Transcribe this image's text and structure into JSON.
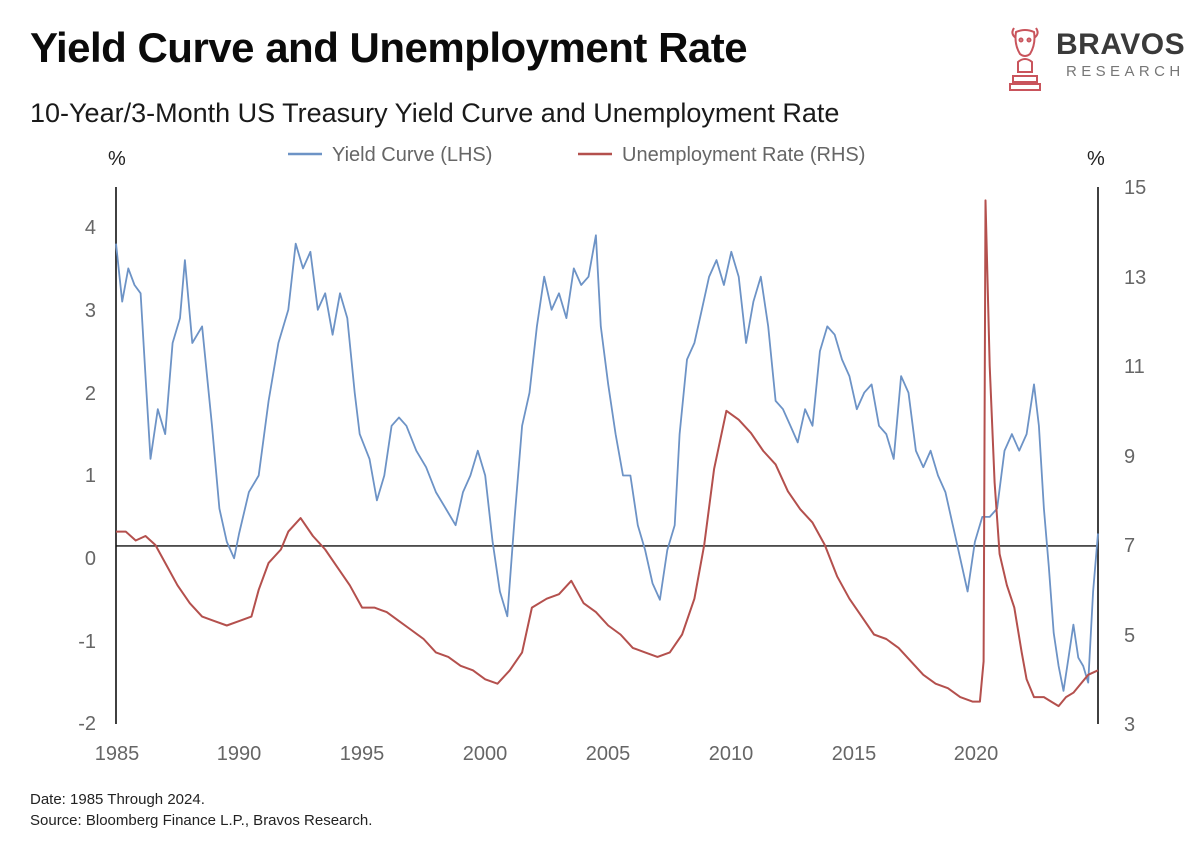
{
  "header": {
    "title": "Yield Curve and Unemployment Rate",
    "subtitle": "10-Year/3-Month US Treasury Yield Curve and Unemployment Rate"
  },
  "brand": {
    "name": "BRAVOS",
    "tagline": "RESEARCH",
    "logo_icon": "bull-chess-knight-icon",
    "logo_color": "#c9545c"
  },
  "footer": {
    "date_note": "Date: 1985 Through 2024.",
    "source_note": "Source: Bloomberg Finance L.P., Bravos Research."
  },
  "chart_data": {
    "type": "line",
    "x_label_ticks": [
      "1985",
      "1990",
      "1995",
      "2000",
      "2005",
      "2010",
      "2015",
      "2020"
    ],
    "xlim": [
      1985,
      2024.9
    ],
    "left_axis": {
      "unit": "%",
      "ticks": [
        "4",
        "3",
        "2",
        "1",
        "0",
        "-1",
        "-2"
      ],
      "ylim": [
        -2,
        4.45
      ]
    },
    "right_axis": {
      "unit": "%",
      "ticks": [
        "15",
        "13",
        "11",
        "9",
        "7",
        "5",
        "3"
      ],
      "ylim": [
        3,
        15
      ]
    },
    "zero_line": 0.15,
    "legend_position": "top-center",
    "series": [
      {
        "name": "Yield Curve (LHS)",
        "axis": "left",
        "color": "#6d93c6",
        "points": [
          [
            1985.0,
            3.8
          ],
          [
            1985.25,
            3.1
          ],
          [
            1985.5,
            3.5
          ],
          [
            1985.75,
            3.3
          ],
          [
            1986.0,
            3.2
          ],
          [
            1986.2,
            2.2
          ],
          [
            1986.4,
            1.2
          ],
          [
            1986.7,
            1.8
          ],
          [
            1987.0,
            1.5
          ],
          [
            1987.3,
            2.6
          ],
          [
            1987.6,
            2.9
          ],
          [
            1987.8,
            3.6
          ],
          [
            1988.1,
            2.6
          ],
          [
            1988.5,
            2.8
          ],
          [
            1988.9,
            1.6
          ],
          [
            1989.2,
            0.6
          ],
          [
            1989.5,
            0.2
          ],
          [
            1989.8,
            0.0
          ],
          [
            1990.0,
            0.3
          ],
          [
            1990.4,
            0.8
          ],
          [
            1990.8,
            1.0
          ],
          [
            1991.2,
            1.9
          ],
          [
            1991.6,
            2.6
          ],
          [
            1992.0,
            3.0
          ],
          [
            1992.3,
            3.8
          ],
          [
            1992.6,
            3.5
          ],
          [
            1992.9,
            3.7
          ],
          [
            1993.2,
            3.0
          ],
          [
            1993.5,
            3.2
          ],
          [
            1993.8,
            2.7
          ],
          [
            1994.1,
            3.2
          ],
          [
            1994.4,
            2.9
          ],
          [
            1994.7,
            2.0
          ],
          [
            1994.9,
            1.5
          ],
          [
            1995.3,
            1.2
          ],
          [
            1995.6,
            0.7
          ],
          [
            1995.9,
            1.0
          ],
          [
            1996.2,
            1.6
          ],
          [
            1996.5,
            1.7
          ],
          [
            1996.8,
            1.6
          ],
          [
            1997.2,
            1.3
          ],
          [
            1997.6,
            1.1
          ],
          [
            1998.0,
            0.8
          ],
          [
            1998.4,
            0.6
          ],
          [
            1998.8,
            0.4
          ],
          [
            1999.1,
            0.8
          ],
          [
            1999.4,
            1.0
          ],
          [
            1999.7,
            1.3
          ],
          [
            2000.0,
            1.0
          ],
          [
            2000.3,
            0.2
          ],
          [
            2000.6,
            -0.4
          ],
          [
            2000.9,
            -0.7
          ],
          [
            2001.2,
            0.5
          ],
          [
            2001.5,
            1.6
          ],
          [
            2001.8,
            2.0
          ],
          [
            2002.1,
            2.8
          ],
          [
            2002.4,
            3.4
          ],
          [
            2002.7,
            3.0
          ],
          [
            2003.0,
            3.2
          ],
          [
            2003.3,
            2.9
          ],
          [
            2003.6,
            3.5
          ],
          [
            2003.9,
            3.3
          ],
          [
            2004.2,
            3.4
          ],
          [
            2004.5,
            3.9
          ],
          [
            2004.7,
            2.8
          ],
          [
            2005.0,
            2.1
          ],
          [
            2005.3,
            1.5
          ],
          [
            2005.6,
            1.0
          ],
          [
            2005.9,
            1.0
          ],
          [
            2006.2,
            0.4
          ],
          [
            2006.5,
            0.1
          ],
          [
            2006.8,
            -0.3
          ],
          [
            2007.1,
            -0.5
          ],
          [
            2007.4,
            0.1
          ],
          [
            2007.7,
            0.4
          ],
          [
            2007.9,
            1.5
          ],
          [
            2008.2,
            2.4
          ],
          [
            2008.5,
            2.6
          ],
          [
            2008.8,
            3.0
          ],
          [
            2009.1,
            3.4
          ],
          [
            2009.4,
            3.6
          ],
          [
            2009.7,
            3.3
          ],
          [
            2010.0,
            3.7
          ],
          [
            2010.3,
            3.4
          ],
          [
            2010.6,
            2.6
          ],
          [
            2010.9,
            3.1
          ],
          [
            2011.2,
            3.4
          ],
          [
            2011.5,
            2.8
          ],
          [
            2011.8,
            1.9
          ],
          [
            2012.1,
            1.8
          ],
          [
            2012.4,
            1.6
          ],
          [
            2012.7,
            1.4
          ],
          [
            2013.0,
            1.8
          ],
          [
            2013.3,
            1.6
          ],
          [
            2013.6,
            2.5
          ],
          [
            2013.9,
            2.8
          ],
          [
            2014.2,
            2.7
          ],
          [
            2014.5,
            2.4
          ],
          [
            2014.8,
            2.2
          ],
          [
            2015.1,
            1.8
          ],
          [
            2015.4,
            2.0
          ],
          [
            2015.7,
            2.1
          ],
          [
            2016.0,
            1.6
          ],
          [
            2016.3,
            1.5
          ],
          [
            2016.6,
            1.2
          ],
          [
            2016.9,
            2.2
          ],
          [
            2017.2,
            2.0
          ],
          [
            2017.5,
            1.3
          ],
          [
            2017.8,
            1.1
          ],
          [
            2018.1,
            1.3
          ],
          [
            2018.4,
            1.0
          ],
          [
            2018.7,
            0.8
          ],
          [
            2019.0,
            0.4
          ],
          [
            2019.3,
            0.0
          ],
          [
            2019.6,
            -0.4
          ],
          [
            2019.9,
            0.2
          ],
          [
            2020.2,
            0.5
          ],
          [
            2020.5,
            0.5
          ],
          [
            2020.8,
            0.6
          ],
          [
            2021.1,
            1.3
          ],
          [
            2021.4,
            1.5
          ],
          [
            2021.7,
            1.3
          ],
          [
            2022.0,
            1.5
          ],
          [
            2022.3,
            2.1
          ],
          [
            2022.5,
            1.6
          ],
          [
            2022.7,
            0.6
          ],
          [
            2022.9,
            -0.1
          ],
          [
            2023.1,
            -0.9
          ],
          [
            2023.3,
            -1.3
          ],
          [
            2023.5,
            -1.6
          ],
          [
            2023.7,
            -1.2
          ],
          [
            2023.9,
            -0.8
          ],
          [
            2024.1,
            -1.2
          ],
          [
            2024.3,
            -1.3
          ],
          [
            2024.5,
            -1.5
          ],
          [
            2024.7,
            -0.4
          ],
          [
            2024.9,
            0.3
          ]
        ]
      },
      {
        "name": "Unemployment Rate (RHS)",
        "axis": "right",
        "color": "#b4504d",
        "points": [
          [
            1985.0,
            7.3
          ],
          [
            1985.4,
            7.3
          ],
          [
            1985.8,
            7.1
          ],
          [
            1986.2,
            7.2
          ],
          [
            1986.6,
            7.0
          ],
          [
            1987.0,
            6.6
          ],
          [
            1987.5,
            6.1
          ],
          [
            1988.0,
            5.7
          ],
          [
            1988.5,
            5.4
          ],
          [
            1989.0,
            5.3
          ],
          [
            1989.5,
            5.2
          ],
          [
            1990.0,
            5.3
          ],
          [
            1990.5,
            5.4
          ],
          [
            1990.8,
            6.0
          ],
          [
            1991.2,
            6.6
          ],
          [
            1991.7,
            6.9
          ],
          [
            1992.0,
            7.3
          ],
          [
            1992.5,
            7.6
          ],
          [
            1993.0,
            7.2
          ],
          [
            1993.5,
            6.9
          ],
          [
            1994.0,
            6.5
          ],
          [
            1994.5,
            6.1
          ],
          [
            1995.0,
            5.6
          ],
          [
            1995.5,
            5.6
          ],
          [
            1996.0,
            5.5
          ],
          [
            1996.5,
            5.3
          ],
          [
            1997.0,
            5.1
          ],
          [
            1997.5,
            4.9
          ],
          [
            1998.0,
            4.6
          ],
          [
            1998.5,
            4.5
          ],
          [
            1999.0,
            4.3
          ],
          [
            1999.5,
            4.2
          ],
          [
            2000.0,
            4.0
          ],
          [
            2000.5,
            3.9
          ],
          [
            2001.0,
            4.2
          ],
          [
            2001.5,
            4.6
          ],
          [
            2001.9,
            5.6
          ],
          [
            2002.5,
            5.8
          ],
          [
            2003.0,
            5.9
          ],
          [
            2003.5,
            6.2
          ],
          [
            2004.0,
            5.7
          ],
          [
            2004.5,
            5.5
          ],
          [
            2005.0,
            5.2
          ],
          [
            2005.5,
            5.0
          ],
          [
            2006.0,
            4.7
          ],
          [
            2006.5,
            4.6
          ],
          [
            2007.0,
            4.5
          ],
          [
            2007.5,
            4.6
          ],
          [
            2008.0,
            5.0
          ],
          [
            2008.5,
            5.8
          ],
          [
            2008.9,
            7.0
          ],
          [
            2009.3,
            8.7
          ],
          [
            2009.8,
            10.0
          ],
          [
            2010.3,
            9.8
          ],
          [
            2010.8,
            9.5
          ],
          [
            2011.3,
            9.1
          ],
          [
            2011.8,
            8.8
          ],
          [
            2012.3,
            8.2
          ],
          [
            2012.8,
            7.8
          ],
          [
            2013.3,
            7.5
          ],
          [
            2013.8,
            7.0
          ],
          [
            2014.3,
            6.3
          ],
          [
            2014.8,
            5.8
          ],
          [
            2015.3,
            5.4
          ],
          [
            2015.8,
            5.0
          ],
          [
            2016.3,
            4.9
          ],
          [
            2016.8,
            4.7
          ],
          [
            2017.3,
            4.4
          ],
          [
            2017.8,
            4.1
          ],
          [
            2018.3,
            3.9
          ],
          [
            2018.8,
            3.8
          ],
          [
            2019.3,
            3.6
          ],
          [
            2019.8,
            3.5
          ],
          [
            2020.1,
            3.5
          ],
          [
            2020.25,
            4.4
          ],
          [
            2020.33,
            14.7
          ],
          [
            2020.5,
            11.0
          ],
          [
            2020.7,
            8.4
          ],
          [
            2020.9,
            6.8
          ],
          [
            2021.2,
            6.1
          ],
          [
            2021.5,
            5.6
          ],
          [
            2021.8,
            4.6
          ],
          [
            2022.0,
            4.0
          ],
          [
            2022.3,
            3.6
          ],
          [
            2022.7,
            3.6
          ],
          [
            2023.0,
            3.5
          ],
          [
            2023.3,
            3.4
          ],
          [
            2023.6,
            3.6
          ],
          [
            2023.9,
            3.7
          ],
          [
            2024.2,
            3.9
          ],
          [
            2024.5,
            4.1
          ],
          [
            2024.9,
            4.2
          ]
        ]
      }
    ]
  }
}
